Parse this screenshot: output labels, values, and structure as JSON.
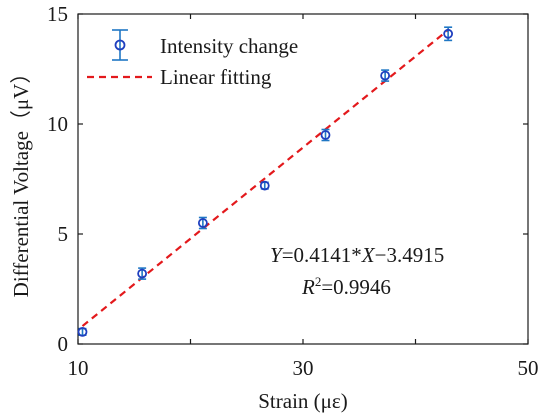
{
  "chart_data": {
    "type": "scatter",
    "xlabel": "Strain (με)",
    "ylabel": "Differential Voltage（μV）",
    "xlim": [
      10,
      50
    ],
    "ylim": [
      0,
      15
    ],
    "x_ticks": [
      10,
      30,
      50
    ],
    "x_minor_ticks": [
      20,
      40
    ],
    "y_ticks": [
      0,
      5,
      10,
      15
    ],
    "grid": false,
    "legend_position": "top-left",
    "series": [
      {
        "name": "Intensity change",
        "kind": "points-with-errorbars",
        "color": "#1f3fbf",
        "errorbar_color": "#1f77c4",
        "x": [
          10.4,
          15.7,
          21.1,
          26.6,
          32.0,
          37.3,
          42.9
        ],
        "y": [
          0.55,
          3.2,
          5.5,
          7.2,
          9.5,
          12.2,
          14.1
        ],
        "error": [
          0.15,
          0.25,
          0.25,
          0.15,
          0.25,
          0.25,
          0.3
        ]
      },
      {
        "name": "Linear fitting",
        "kind": "fit-line",
        "color": "#e3191c",
        "slope": 0.4141,
        "intercept": -3.4915,
        "x_range": [
          10.4,
          43.0
        ]
      }
    ],
    "annotation": {
      "equation_y": "Y",
      "equation_mid": "=0.4141*",
      "equation_x": "X",
      "equation_tail": "−3.4915",
      "r2_r": "R",
      "r2_sup": "2",
      "r2_tail": "=0.9946"
    }
  }
}
